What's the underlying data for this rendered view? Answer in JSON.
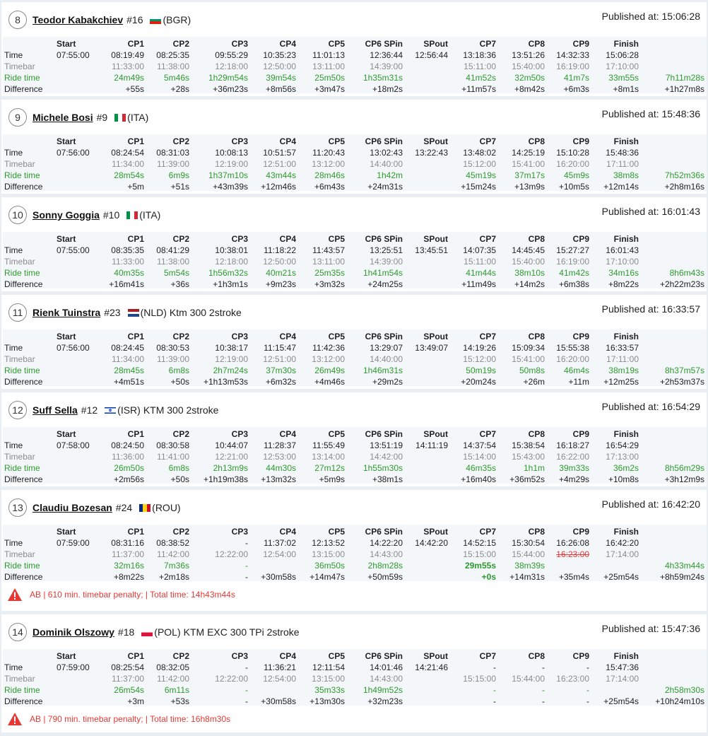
{
  "columns": [
    "Start",
    "CP1",
    "CP2",
    "CP3",
    "CP4",
    "CP5",
    "CP6 SPin",
    "SPout",
    "CP7",
    "CP8",
    "CP9",
    "Finish",
    ""
  ],
  "row_labels": {
    "time": "Time",
    "timebar": "Timebar",
    "ride": "Ride time",
    "diff": "Difference"
  },
  "colors": {
    "ride": "#2e9a2e",
    "penalty": "#e53935",
    "muted": "#8b8b8b"
  },
  "riders": [
    {
      "position": "8",
      "name": "Teodor Kabakchiev",
      "number": "#16",
      "flag": "bulgaria-flag",
      "country": "(BGR)",
      "extra": "",
      "published": "Published at: 15:06:28",
      "time": [
        "07:55:00",
        "08:19:49",
        "08:25:35",
        "09:55:29",
        "10:35:23",
        "11:01:13",
        "12:36:44",
        "12:56:44",
        "13:18:36",
        "13:51:26",
        "14:32:33",
        "15:06:28",
        ""
      ],
      "timebar": [
        "",
        "11:33:00",
        "11:38:00",
        "12:18:00",
        "12:50:00",
        "13:11:00",
        "14:39:00",
        "",
        "15:11:00",
        "15:40:00",
        "16:19:00",
        "17:10:00",
        ""
      ],
      "ride": [
        "",
        "24m49s",
        "5m46s",
        "1h29m54s",
        "39m54s",
        "25m50s",
        "1h35m31s",
        "",
        "41m52s",
        "32m50s",
        "41m7s",
        "33m55s",
        "7h11m28s"
      ],
      "diff": [
        "",
        "+55s",
        "+28s",
        "+36m23s",
        "+8m56s",
        "+3m47s",
        "+18m2s",
        "",
        "+11m57s",
        "+8m42s",
        "+6m3s",
        "+8m1s",
        "+1h27m8s"
      ],
      "penalty": ""
    },
    {
      "position": "9",
      "name": "Michele Bosi",
      "number": "#9",
      "flag": "italy-flag",
      "country": "(ITA)",
      "extra": "",
      "published": "Published at: 15:48:36",
      "time": [
        "07:56:00",
        "08:24:54",
        "08:31:03",
        "10:08:13",
        "10:51:57",
        "11:20:43",
        "13:02:43",
        "13:22:43",
        "13:48:02",
        "14:25:19",
        "15:10:28",
        "15:48:36",
        ""
      ],
      "timebar": [
        "",
        "11:34:00",
        "11:39:00",
        "12:19:00",
        "12:51:00",
        "13:12:00",
        "14:40:00",
        "",
        "15:12:00",
        "15:41:00",
        "16:20:00",
        "17:11:00",
        ""
      ],
      "ride": [
        "",
        "28m54s",
        "6m9s",
        "1h37m10s",
        "43m44s",
        "28m46s",
        "1h42m",
        "",
        "45m19s",
        "37m17s",
        "45m9s",
        "38m8s",
        "7h52m36s"
      ],
      "diff": [
        "",
        "+5m",
        "+51s",
        "+43m39s",
        "+12m46s",
        "+6m43s",
        "+24m31s",
        "",
        "+15m24s",
        "+13m9s",
        "+10m5s",
        "+12m14s",
        "+2h8m16s"
      ],
      "penalty": ""
    },
    {
      "position": "10",
      "name": "Sonny Goggia",
      "number": "#10",
      "flag": "italy-flag",
      "country": "(ITA)",
      "extra": "",
      "published": "Published at: 16:01:43",
      "time": [
        "07:55:00",
        "08:35:35",
        "08:41:29",
        "10:38:01",
        "11:18:22",
        "11:43:57",
        "13:25:51",
        "13:45:51",
        "14:07:35",
        "14:45:45",
        "15:27:27",
        "16:01:43",
        ""
      ],
      "timebar": [
        "",
        "11:33:00",
        "11:38:00",
        "12:18:00",
        "12:50:00",
        "13:11:00",
        "14:39:00",
        "",
        "15:11:00",
        "15:40:00",
        "16:19:00",
        "17:10:00",
        ""
      ],
      "ride": [
        "",
        "40m35s",
        "5m54s",
        "1h56m32s",
        "40m21s",
        "25m35s",
        "1h41m54s",
        "",
        "41m44s",
        "38m10s",
        "41m42s",
        "34m16s",
        "8h6m43s"
      ],
      "diff": [
        "",
        "+16m41s",
        "+36s",
        "+1h3m1s",
        "+9m23s",
        "+3m32s",
        "+24m25s",
        "",
        "+11m49s",
        "+14m2s",
        "+6m38s",
        "+8m22s",
        "+2h22m23s"
      ],
      "penalty": ""
    },
    {
      "position": "11",
      "name": "Rienk Tuinstra",
      "number": "#23",
      "flag": "netherlands-flag",
      "country": "(NLD)",
      "extra": "Ktm 300 2stroke",
      "published": "Published at: 16:33:57",
      "time": [
        "07:56:00",
        "08:24:45",
        "08:30:53",
        "10:38:17",
        "11:15:47",
        "11:42:36",
        "13:29:07",
        "13:49:07",
        "14:19:26",
        "15:09:34",
        "15:55:38",
        "16:33:57",
        ""
      ],
      "timebar": [
        "",
        "11:34:00",
        "11:39:00",
        "12:19:00",
        "12:51:00",
        "13:12:00",
        "14:40:00",
        "",
        "15:12:00",
        "15:41:00",
        "16:20:00",
        "17:11:00",
        ""
      ],
      "ride": [
        "",
        "28m45s",
        "6m8s",
        "2h7m24s",
        "37m30s",
        "26m49s",
        "1h46m31s",
        "",
        "50m19s",
        "50m8s",
        "46m4s",
        "38m19s",
        "8h37m57s"
      ],
      "diff": [
        "",
        "+4m51s",
        "+50s",
        "+1h13m53s",
        "+6m32s",
        "+4m46s",
        "+29m2s",
        "",
        "+20m24s",
        "+26m",
        "+11m",
        "+12m25s",
        "+2h53m37s"
      ],
      "penalty": ""
    },
    {
      "position": "12",
      "name": "Suff Sella",
      "number": "#12",
      "flag": "israel-flag",
      "country": "(ISR)",
      "extra": "KTM 300 2stroke",
      "published": "Published at: 16:54:29",
      "time": [
        "07:58:00",
        "08:24:50",
        "08:30:58",
        "10:44:07",
        "11:28:37",
        "11:55:49",
        "13:51:19",
        "14:11:19",
        "14:37:54",
        "15:38:54",
        "16:18:27",
        "16:54:29",
        ""
      ],
      "timebar": [
        "",
        "11:36:00",
        "11:41:00",
        "12:21:00",
        "12:53:00",
        "13:14:00",
        "14:42:00",
        "",
        "15:14:00",
        "15:43:00",
        "16:22:00",
        "17:13:00",
        ""
      ],
      "ride": [
        "",
        "26m50s",
        "6m8s",
        "2h13m9s",
        "44m30s",
        "27m12s",
        "1h55m30s",
        "",
        "46m35s",
        "1h1m",
        "39m33s",
        "36m2s",
        "8h56m29s"
      ],
      "diff": [
        "",
        "+2m56s",
        "+50s",
        "+1h19m38s",
        "+13m32s",
        "+5m9s",
        "+38m1s",
        "",
        "+16m40s",
        "+36m52s",
        "+4m29s",
        "+10m8s",
        "+3h12m9s"
      ],
      "penalty": ""
    },
    {
      "position": "13",
      "name": "Claudiu Bozesan",
      "number": "#24",
      "flag": "romania-flag",
      "country": "(ROU)",
      "extra": "",
      "published": "Published at: 16:42:20",
      "time": [
        "07:59:00",
        "08:31:16",
        "08:38:52",
        "-",
        "11:37:02",
        "12:13:52",
        "14:22:20",
        "14:42:20",
        "14:52:15",
        "15:30:54",
        "16:26:08",
        "16:42:20",
        ""
      ],
      "timebar": [
        "",
        "11:37:00",
        "11:42:00",
        "12:22:00",
        "12:54:00",
        "13:15:00",
        "14:43:00",
        "",
        "15:15:00",
        "15:44:00",
        "16:23:00",
        "17:14:00",
        ""
      ],
      "ride": [
        "",
        "32m16s",
        "7m36s",
        "-",
        "",
        "36m50s",
        "2h8m28s",
        "",
        "29m55s",
        "38m39s",
        "",
        "",
        "4h33m44s"
      ],
      "diff": [
        "",
        "+8m22s",
        "+2m18s",
        "-",
        "+30m58s",
        "+14m47s",
        "+50m59s",
        "",
        "+0s",
        "+14m31s",
        "+35m4s",
        "+25m54s",
        "+8h59m24s"
      ],
      "penalty": "AB | 610 min. timebar penalty; | Total time: 14h43m44s"
    },
    {
      "position": "14",
      "name": "Dominik Olszowy",
      "number": "#18",
      "flag": "poland-flag",
      "country": "(POL)",
      "extra": "KTM EXC 300 TPi 2stroke",
      "published": "Published at: 15:47:36",
      "time": [
        "07:59:00",
        "08:25:54",
        "08:32:05",
        "-",
        "11:36:21",
        "12:11:54",
        "14:01:46",
        "14:21:46",
        "-",
        "-",
        "-",
        "15:47:36",
        ""
      ],
      "timebar": [
        "",
        "11:37:00",
        "11:42:00",
        "12:22:00",
        "12:54:00",
        "13:15:00",
        "14:43:00",
        "",
        "15:15:00",
        "15:44:00",
        "16:23:00",
        "17:14:00",
        ""
      ],
      "ride": [
        "",
        "26m54s",
        "6m11s",
        "-",
        "",
        "35m33s",
        "1h49m52s",
        "",
        "-",
        "-",
        "-",
        "",
        "2h58m30s"
      ],
      "diff": [
        "",
        "+3m",
        "+53s",
        "-",
        "+30m58s",
        "+13m30s",
        "+32m23s",
        "",
        "-",
        "-",
        "-",
        "+25m54s",
        "+10h24m10s"
      ],
      "penalty": "AB | 790 min. timebar penalty; | Total time: 16h8m30s"
    }
  ]
}
